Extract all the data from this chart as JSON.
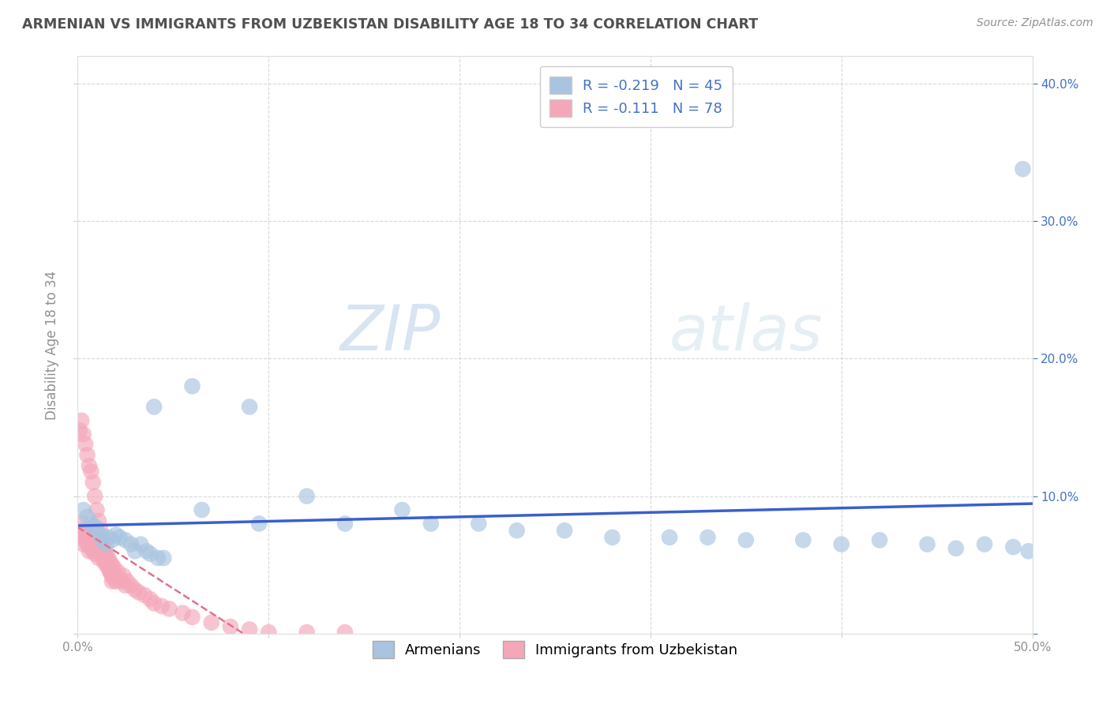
{
  "title": "ARMENIAN VS IMMIGRANTS FROM UZBEKISTAN DISABILITY AGE 18 TO 34 CORRELATION CHART",
  "source": "Source: ZipAtlas.com",
  "ylabel": "Disability Age 18 to 34",
  "watermark_zip": "ZIP",
  "watermark_atlas": "atlas",
  "xmin": 0.0,
  "xmax": 0.5,
  "ymin": 0.0,
  "ymax": 0.42,
  "x_ticks": [
    0.0,
    0.1,
    0.2,
    0.3,
    0.4,
    0.5
  ],
  "x_tick_labels": [
    "0.0%",
    "",
    "",
    "",
    "",
    "50.0%"
  ],
  "y_ticks_left": [
    0.0,
    0.1,
    0.2,
    0.3,
    0.4
  ],
  "y_tick_labels_left": [
    "",
    "",
    "",
    "",
    ""
  ],
  "y_ticks_right": [
    0.0,
    0.1,
    0.2,
    0.3,
    0.4
  ],
  "y_tick_labels_right": [
    "",
    "10.0%",
    "20.0%",
    "30.0%",
    "40.0%"
  ],
  "legend1_label": "R = -0.219   N = 45",
  "legend2_label": "R = -0.111   N = 78",
  "armenians_color": "#a8c4e0",
  "uzbekistan_color": "#f4a7b9",
  "line1_color": "#3a5fcd",
  "line2_color": "#e07090",
  "legend1_series": "Armenians",
  "legend2_series": "Immigrants from Uzbekistan",
  "background_color": "#ffffff",
  "grid_color": "#d0d0d0",
  "title_color": "#505050",
  "axis_color": "#909090",
  "right_axis_color": "#4472c4",
  "source_color": "#909090",
  "armenians_x": [
    0.003,
    0.005,
    0.007,
    0.009,
    0.01,
    0.012,
    0.013,
    0.015,
    0.016,
    0.018,
    0.02,
    0.022,
    0.025,
    0.028,
    0.03,
    0.033,
    0.036,
    0.038,
    0.04,
    0.042,
    0.045,
    0.06,
    0.065,
    0.09,
    0.095,
    0.12,
    0.14,
    0.17,
    0.185,
    0.21,
    0.23,
    0.255,
    0.28,
    0.31,
    0.33,
    0.35,
    0.38,
    0.4,
    0.42,
    0.445,
    0.46,
    0.475,
    0.49,
    0.495,
    0.498
  ],
  "armenians_y": [
    0.09,
    0.085,
    0.08,
    0.078,
    0.075,
    0.072,
    0.068,
    0.065,
    0.07,
    0.068,
    0.072,
    0.07,
    0.068,
    0.065,
    0.06,
    0.065,
    0.06,
    0.058,
    0.165,
    0.055,
    0.055,
    0.18,
    0.09,
    0.165,
    0.08,
    0.1,
    0.08,
    0.09,
    0.08,
    0.08,
    0.075,
    0.075,
    0.07,
    0.07,
    0.07,
    0.068,
    0.068,
    0.065,
    0.068,
    0.065,
    0.062,
    0.065,
    0.063,
    0.338,
    0.06
  ],
  "uzbekistan_x": [
    0.001,
    0.002,
    0.002,
    0.003,
    0.003,
    0.004,
    0.004,
    0.005,
    0.005,
    0.006,
    0.006,
    0.007,
    0.007,
    0.008,
    0.008,
    0.009,
    0.009,
    0.01,
    0.01,
    0.011,
    0.011,
    0.012,
    0.012,
    0.013,
    0.013,
    0.014,
    0.014,
    0.015,
    0.015,
    0.016,
    0.016,
    0.017,
    0.017,
    0.018,
    0.018,
    0.019,
    0.019,
    0.02,
    0.021,
    0.022,
    0.023,
    0.024,
    0.025,
    0.026,
    0.028,
    0.03,
    0.032,
    0.035,
    0.038,
    0.04,
    0.044,
    0.048,
    0.055,
    0.06,
    0.07,
    0.08,
    0.09,
    0.1,
    0.12,
    0.14,
    0.001,
    0.002,
    0.003,
    0.004,
    0.005,
    0.006,
    0.007,
    0.008,
    0.009,
    0.01,
    0.011,
    0.012,
    0.013,
    0.014,
    0.015,
    0.016,
    0.017,
    0.018
  ],
  "uzbekistan_y": [
    0.075,
    0.07,
    0.08,
    0.065,
    0.072,
    0.068,
    0.075,
    0.065,
    0.072,
    0.06,
    0.068,
    0.062,
    0.07,
    0.06,
    0.068,
    0.058,
    0.065,
    0.06,
    0.068,
    0.055,
    0.062,
    0.058,
    0.065,
    0.055,
    0.062,
    0.052,
    0.06,
    0.05,
    0.058,
    0.048,
    0.055,
    0.045,
    0.052,
    0.042,
    0.05,
    0.04,
    0.048,
    0.038,
    0.045,
    0.04,
    0.038,
    0.042,
    0.035,
    0.038,
    0.035,
    0.032,
    0.03,
    0.028,
    0.025,
    0.022,
    0.02,
    0.018,
    0.015,
    0.012,
    0.008,
    0.005,
    0.003,
    0.001,
    0.001,
    0.001,
    0.148,
    0.155,
    0.145,
    0.138,
    0.13,
    0.122,
    0.118,
    0.11,
    0.1,
    0.09,
    0.082,
    0.075,
    0.068,
    0.062,
    0.055,
    0.05,
    0.045,
    0.038
  ]
}
